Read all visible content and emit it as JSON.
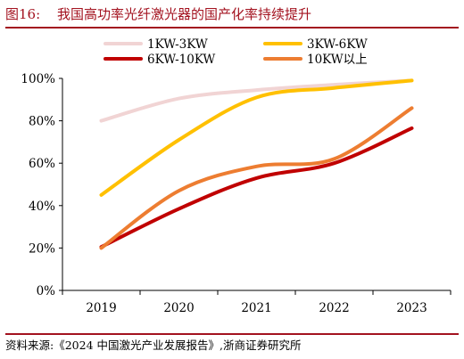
{
  "figure": {
    "number": "图16:",
    "title": "我国高功率光纤激光器的国产化率持续提升",
    "source": "资料来源:《2024 中国激光产业发展报告》,浙商证券研究所"
  },
  "chart_data": {
    "type": "line",
    "x": [
      "2019",
      "2020",
      "2021",
      "2022",
      "2023"
    ],
    "ylim": [
      0,
      100
    ],
    "yticks": [
      0,
      20,
      40,
      60,
      80,
      100
    ],
    "ytick_labels": [
      "0%",
      "20%",
      "40%",
      "60%",
      "80%",
      "100%"
    ],
    "grid": false,
    "legend": "top, two columns",
    "series": [
      {
        "name": "1KW-3KW",
        "color": "#f1d4d4",
        "values": [
          80,
          90.5,
          94.5,
          97,
          99
        ]
      },
      {
        "name": "3KW-6KW",
        "color": "#ffc000",
        "values": [
          45,
          71,
          91,
          95.5,
          99
        ]
      },
      {
        "name": "6KW-10KW",
        "color": "#c00000",
        "values": [
          20.5,
          38.5,
          53,
          60,
          76.5
        ]
      },
      {
        "name": "10KW以上",
        "color": "#ed7d31",
        "values": [
          20,
          47,
          58.5,
          62,
          86
        ]
      }
    ]
  }
}
